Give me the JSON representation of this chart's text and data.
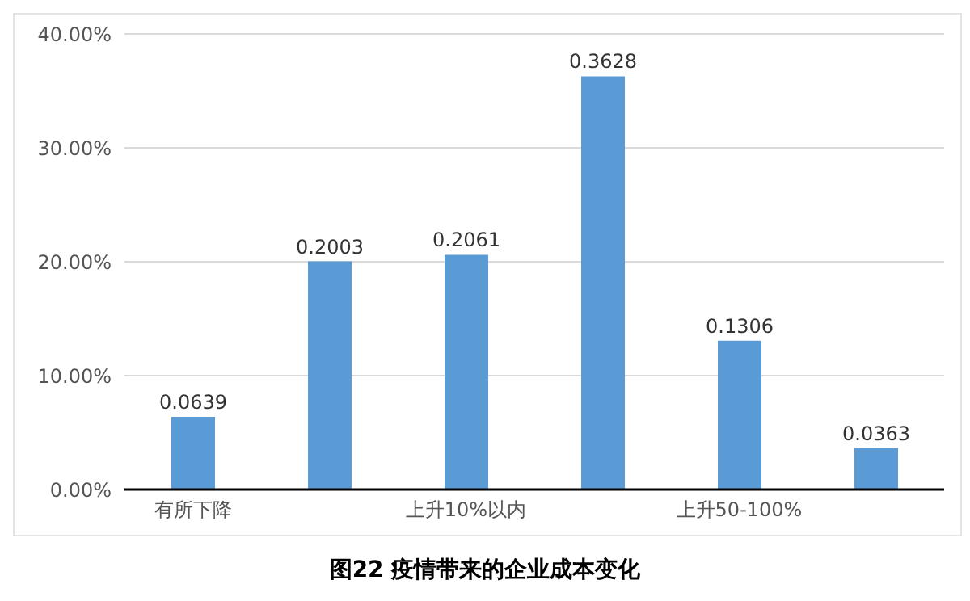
{
  "chart_data": {
    "type": "bar",
    "title": "图22 疫情带来的企业成本变化",
    "categories": [
      "有所下降",
      null,
      "上升10%以内",
      null,
      "上升50-100%",
      null
    ],
    "values": [
      0.0639,
      0.2003,
      0.2061,
      0.3628,
      0.1306,
      0.0363
    ],
    "color": "#5b9bd5",
    "ylim": [
      0,
      0.4
    ],
    "yticks": [
      {
        "value": 0,
        "label": "0.00%"
      },
      {
        "value": 0.1,
        "label": "10.00%"
      },
      {
        "value": 0.2,
        "label": "20.00%"
      },
      {
        "value": 0.3,
        "label": "30.00%"
      },
      {
        "value": 0.4,
        "label": "40.00%"
      }
    ],
    "grid": "y",
    "data_labels": true
  }
}
